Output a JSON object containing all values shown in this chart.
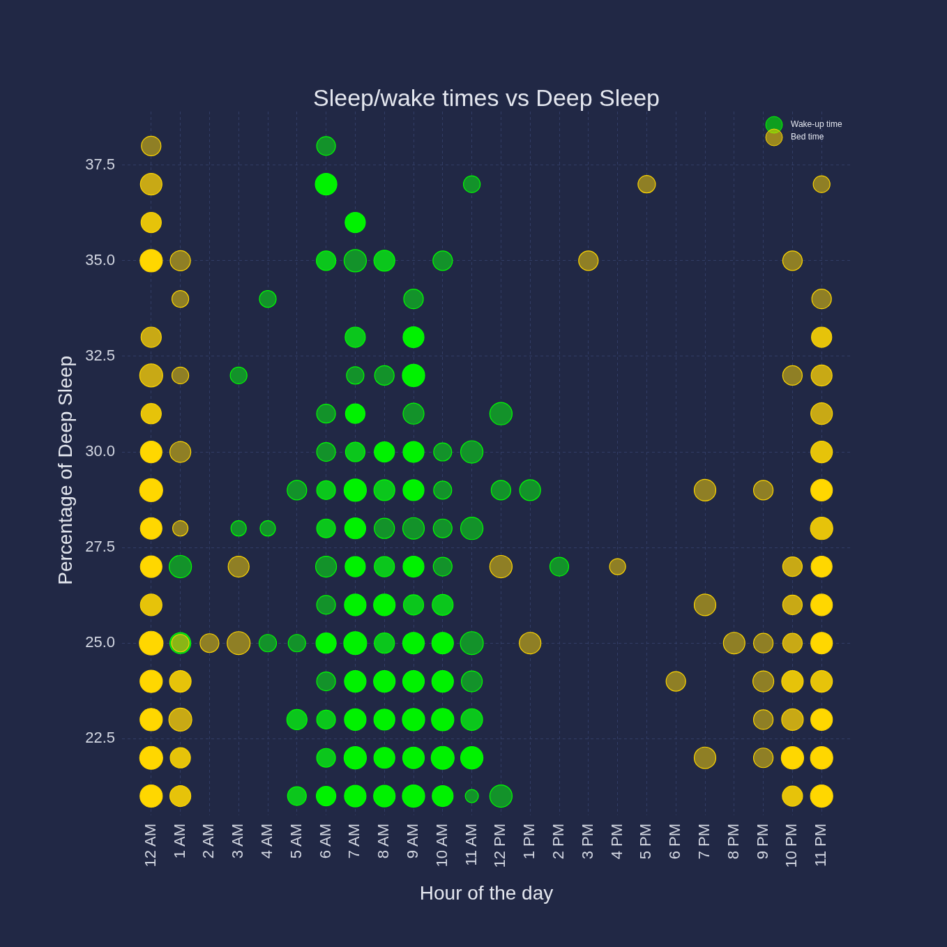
{
  "chart_data": {
    "type": "bubble",
    "title": "Sleep/wake times vs Deep Sleep",
    "xlabel": "Hour of the day",
    "ylabel": "Percentage of Deep Sleep",
    "categories": [
      "12 AM",
      "1 AM",
      "2 AM",
      "3 AM",
      "4 AM",
      "5 AM",
      "6 AM",
      "7 AM",
      "8 AM",
      "9 AM",
      "10 AM",
      "11 AM",
      "12 PM",
      "1 PM",
      "2 PM",
      "3 PM",
      "4 PM",
      "5 PM",
      "6 PM",
      "7 PM",
      "8 PM",
      "9 PM",
      "10 PM",
      "11 PM"
    ],
    "ylim": [
      20.5,
      38.9
    ],
    "yticks": [
      22.5,
      {
        "value": 25,
        "label": "25.0"
      },
      27.5,
      {
        "value": 30,
        "label": "30.0"
      },
      32.5,
      {
        "value": 35,
        "label": "35.0"
      },
      37.5
    ],
    "grid": true,
    "legend": "top right",
    "marker": "circle",
    "series": [
      {
        "name": "Wake-up time",
        "color": "#00ff00",
        "x": [
          "1 AM",
          "1 AM",
          "3 AM",
          "3 AM",
          "4 AM",
          "4 AM",
          "4 AM",
          "5 AM",
          "5 AM",
          "5 AM",
          "5 AM",
          "6 AM",
          "6 AM",
          "6 AM",
          "6 AM",
          "6 AM",
          "6 AM",
          "6 AM",
          "6 AM",
          "6 AM",
          "6 AM",
          "6 AM",
          "6 AM",
          "6 AM",
          "6 AM",
          "7 AM",
          "7 AM",
          "7 AM",
          "7 AM",
          "7 AM",
          "7 AM",
          "7 AM",
          "7 AM",
          "7 AM",
          "7 AM",
          "7 AM",
          "7 AM",
          "7 AM",
          "7 AM",
          "7 AM",
          "8 AM",
          "8 AM",
          "8 AM",
          "8 AM",
          "8 AM",
          "8 AM",
          "8 AM",
          "8 AM",
          "8 AM",
          "8 AM",
          "8 AM",
          "8 AM",
          "9 AM",
          "9 AM",
          "9 AM",
          "9 AM",
          "9 AM",
          "9 AM",
          "9 AM",
          "9 AM",
          "9 AM",
          "9 AM",
          "9 AM",
          "9 AM",
          "9 AM",
          "9 AM",
          "10 AM",
          "10 AM",
          "10 AM",
          "10 AM",
          "10 AM",
          "10 AM",
          "10 AM",
          "10 AM",
          "10 AM",
          "10 AM",
          "10 AM",
          "11 AM",
          "11 AM",
          "11 AM",
          "11 AM",
          "11 AM",
          "11 AM",
          "11 AM",
          "11 AM",
          "12 PM",
          "12 PM",
          "12 PM",
          "1 PM",
          "2 PM"
        ],
        "values": [
          27,
          25,
          32,
          28,
          34,
          28,
          25,
          29,
          25,
          23,
          21,
          38,
          37,
          35,
          31,
          30,
          29,
          28,
          27,
          26,
          25,
          24,
          23,
          22,
          21,
          36,
          35,
          33,
          32,
          31,
          30,
          29,
          28,
          27,
          26,
          25,
          24,
          23,
          22,
          21,
          35,
          32,
          30,
          29,
          28,
          27,
          26,
          25,
          24,
          23,
          22,
          21,
          34,
          33,
          32,
          31,
          30,
          29,
          28,
          27,
          26,
          25,
          24,
          23,
          22,
          21,
          35,
          30,
          29,
          28,
          27,
          26,
          25,
          24,
          23,
          22,
          21,
          37,
          30,
          28,
          25,
          24,
          23,
          22,
          21,
          31,
          29,
          21,
          29,
          27
        ],
        "sizes": [
          0.89,
          0.78,
          0.5,
          0.42,
          0.5,
          0.42,
          0.54,
          0.68,
          0.54,
          0.73,
          0.63,
          0.63,
          0.83,
          0.68,
          0.63,
          0.63,
          0.63,
          0.63,
          0.78,
          0.63,
          0.73,
          0.63,
          0.63,
          0.63,
          0.68,
          0.73,
          0.89,
          0.73,
          0.54,
          0.68,
          0.68,
          0.89,
          0.78,
          0.73,
          0.83,
          0.94,
          0.83,
          0.83,
          0.89,
          0.83,
          0.78,
          0.68,
          0.73,
          0.78,
          0.73,
          0.73,
          0.83,
          0.73,
          0.83,
          0.78,
          0.78,
          0.83,
          0.68,
          0.78,
          0.89,
          0.78,
          0.78,
          0.78,
          0.83,
          0.78,
          0.73,
          0.83,
          0.83,
          0.89,
          0.83,
          0.89,
          0.68,
          0.58,
          0.58,
          0.63,
          0.63,
          0.78,
          0.83,
          0.83,
          0.89,
          0.94,
          0.78,
          0.5,
          0.89,
          0.89,
          0.94,
          0.78,
          0.83,
          0.89,
          0.31,
          0.89,
          0.68,
          0.89,
          0.78,
          0.63
        ],
        "colors": [
          "#13922a",
          "#0bc61c",
          "#13922a",
          "#13922a",
          "#13922a",
          "#13922a",
          "#13922a",
          "#13922a",
          "#13922a",
          "#0bc61c",
          "#0bc61c",
          "#13922a",
          "#00f200",
          "#0bc61c",
          "#13922a",
          "#13922a",
          "#0bc61c",
          "#0bc61c",
          "#13922a",
          "#13922a",
          "#00f200",
          "#13922a",
          "#0bc61c",
          "#0bc61c",
          "#00f200",
          "#00f200",
          "#13922a",
          "#0bc61c",
          "#13922a",
          "#00f200",
          "#0bc61c",
          "#00f200",
          "#00f200",
          "#00f200",
          "#00f200",
          "#00f200",
          "#00f200",
          "#00f200",
          "#00f200",
          "#00f200",
          "#0bc61c",
          "#13922a",
          "#00f200",
          "#0bc61c",
          "#13922a",
          "#0bc61c",
          "#00f200",
          "#0bc61c",
          "#00f200",
          "#00f200",
          "#00f200",
          "#00f200",
          "#13922a",
          "#00f200",
          "#00f200",
          "#13922a",
          "#00f200",
          "#00f200",
          "#13922a",
          "#00f200",
          "#0bc61c",
          "#00f200",
          "#00f200",
          "#00f200",
          "#00f200",
          "#00f200",
          "#13922a",
          "#13922a",
          "#13922a",
          "#13922a",
          "#13922a",
          "#0bc61c",
          "#00f200",
          "#00f200",
          "#00f200",
          "#00f200",
          "#00f200",
          "#13922a",
          "#13922a",
          "#13922a",
          "#13922a",
          "#13922a",
          "#0bc61c",
          "#00f200",
          "#13922a",
          "#13922a",
          "#13922a",
          "#13922a",
          "#13922a",
          "#13922a"
        ]
      },
      {
        "name": "Bed time",
        "color": "#ffd700",
        "x": [
          "12 AM",
          "12 AM",
          "12 AM",
          "12 AM",
          "12 AM",
          "12 AM",
          "12 AM",
          "12 AM",
          "12 AM",
          "12 AM",
          "12 AM",
          "12 AM",
          "12 AM",
          "12 AM",
          "12 AM",
          "12 AM",
          "12 AM",
          "1 AM",
          "1 AM",
          "1 AM",
          "1 AM",
          "1 AM",
          "1 AM",
          "1 AM",
          "1 AM",
          "1 AM",
          "1 AM",
          "2 AM",
          "3 AM",
          "3 AM",
          "12 PM",
          "1 PM",
          "3 PM",
          "4 PM",
          "5 PM",
          "6 PM",
          "7 PM",
          "7 PM",
          "7 PM",
          "8 PM",
          "9 PM",
          "9 PM",
          "9 PM",
          "9 PM",
          "9 PM",
          "10 PM",
          "10 PM",
          "10 PM",
          "10 PM",
          "10 PM",
          "10 PM",
          "10 PM",
          "10 PM",
          "10 PM",
          "11 PM",
          "11 PM",
          "11 PM",
          "11 PM",
          "11 PM",
          "11 PM",
          "11 PM",
          "11 PM",
          "11 PM",
          "11 PM",
          "11 PM",
          "11 PM",
          "11 PM",
          "11 PM",
          "11 PM"
        ],
        "values": [
          38,
          37,
          36,
          35,
          33,
          32,
          31,
          30,
          29,
          28,
          27,
          26,
          25,
          24,
          23,
          22,
          21,
          35,
          34,
          32,
          30,
          28,
          25,
          24,
          23,
          22,
          21,
          25,
          27,
          25,
          27,
          25,
          35,
          27,
          37,
          24,
          29,
          26,
          22,
          25,
          29,
          25,
          24,
          23,
          22,
          35,
          32,
          27,
          26,
          25,
          24,
          23,
          22,
          21,
          37,
          34,
          33,
          32,
          31,
          30,
          29,
          28,
          27,
          26,
          25,
          24,
          23,
          22,
          21
        ],
        "sizes": [
          0.68,
          0.83,
          0.73,
          0.89,
          0.73,
          0.94,
          0.73,
          0.83,
          0.94,
          0.83,
          0.83,
          0.83,
          1,
          0.89,
          0.89,
          0.94,
          0.89,
          0.73,
          0.5,
          0.5,
          0.78,
          0.42,
          0.54,
          0.83,
          0.94,
          0.73,
          0.78,
          0.63,
          0.78,
          0.94,
          0.89,
          0.83,
          0.68,
          0.46,
          0.54,
          0.68,
          0.83,
          0.83,
          0.83,
          0.83,
          0.68,
          0.68,
          0.78,
          0.68,
          0.68,
          0.68,
          0.68,
          0.68,
          0.68,
          0.68,
          0.83,
          0.83,
          0.89,
          0.73,
          0.5,
          0.68,
          0.73,
          0.78,
          0.83,
          0.83,
          0.83,
          0.89,
          0.78,
          0.83,
          0.83,
          0.83,
          0.83,
          0.89,
          0.89
        ],
        "colors": [
          "#8f7f25",
          "#c8a915",
          "#e6c30a",
          "#ffd700",
          "#c8a915",
          "#c8a915",
          "#e6c30a",
          "#ffd700",
          "#ffd700",
          "#ffd700",
          "#ffd700",
          "#e6c30a",
          "#ffd700",
          "#ffd700",
          "#ffd700",
          "#ffd700",
          "#ffd700",
          "#8f7f25",
          "#8f7f25",
          "#8f7f25",
          "#8f7f25",
          "#8f7f25",
          "#8ab516",
          "#e6c30a",
          "#c8a915",
          "#e6c30a",
          "#e6c30a",
          "#8f7f25",
          "#8f7f25",
          "#8f7f25",
          "#8f7f25",
          "#8f7f25",
          "#8f7f25",
          "#8f7f25",
          "#8f7f25",
          "#8f7f25",
          "#8f7f25",
          "#8f7f25",
          "#8f7f25",
          "#8f7f25",
          "#8f7f25",
          "#8f7f25",
          "#8f7f25",
          "#8f7f25",
          "#8f7f25",
          "#8f7f25",
          "#8f7f25",
          "#c8a915",
          "#c8a915",
          "#c8a915",
          "#e6c30a",
          "#c8a915",
          "#ffd700",
          "#e6c30a",
          "#8f7f25",
          "#8f7f25",
          "#e6c30a",
          "#c8a915",
          "#c8a915",
          "#e6c30a",
          "#ffd700",
          "#e6c30a",
          "#ffd700",
          "#ffd700",
          "#ffd700",
          "#e6c30a",
          "#ffd700",
          "#ffd700",
          "#ffd700"
        ]
      }
    ]
  }
}
